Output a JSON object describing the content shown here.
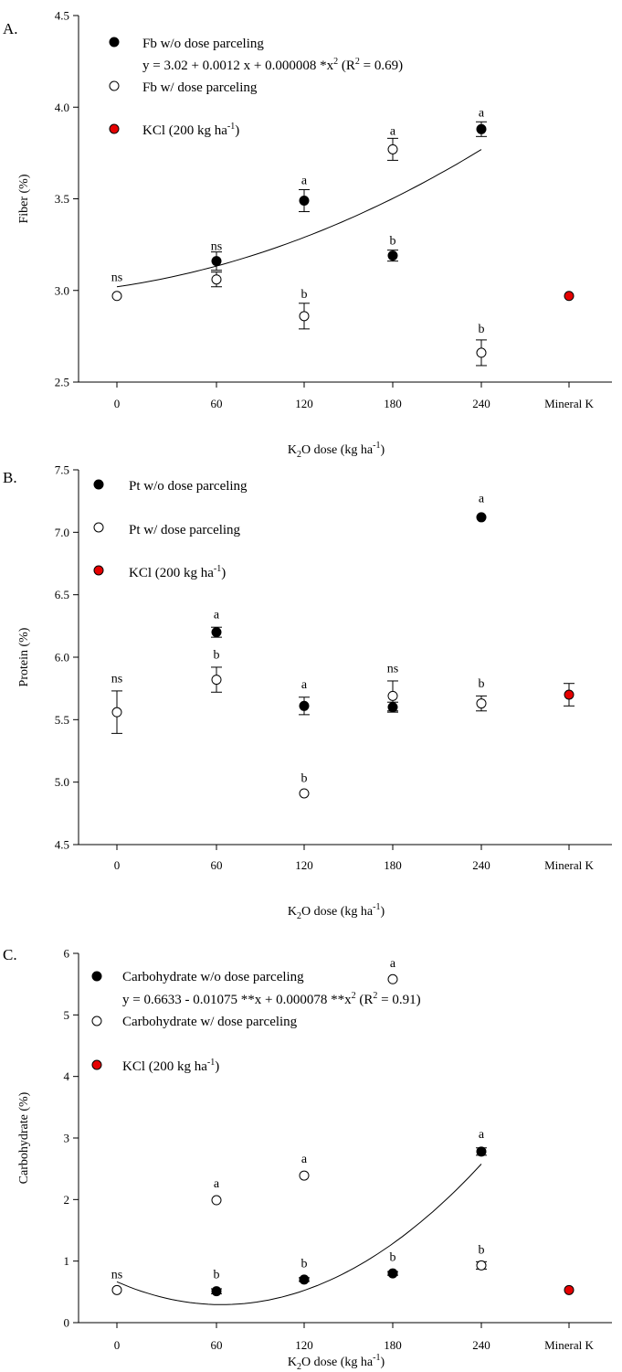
{
  "chart_data": [
    {
      "panel": "A.",
      "type": "scatter",
      "categories": [
        "0",
        "60",
        "120",
        "180",
        "240",
        "Mineral K"
      ],
      "ylabel": "Fiber (%)",
      "xlabel": {
        "pre": "K",
        "sub": "2",
        "mid": "O dose (kg ha",
        "sup": "-1",
        "post": ")"
      },
      "ylim": [
        2.5,
        4.5
      ],
      "yticks": [
        "2.5",
        "3.0",
        "3.5",
        "4.0",
        "4.5"
      ],
      "series": [
        {
          "name": "Fb w/o dose parceling",
          "marker": "filled",
          "color": "#000000",
          "points": [
            {
              "cat": 1,
              "y": 3.16,
              "err": 0.05
            },
            {
              "cat": 2,
              "y": 3.49,
              "err": 0.06
            },
            {
              "cat": 3,
              "y": 3.19,
              "err": 0.03
            },
            {
              "cat": 4,
              "y": 3.88,
              "err": 0.04
            }
          ]
        },
        {
          "name": "Fb w/ dose parceling",
          "marker": "open",
          "color": "#000000",
          "points": [
            {
              "cat": 0,
              "y": 2.97,
              "err": 0.0
            },
            {
              "cat": 1,
              "y": 3.06,
              "err": 0.04
            },
            {
              "cat": 2,
              "y": 2.86,
              "err": 0.07
            },
            {
              "cat": 3,
              "y": 3.77,
              "err": 0.06
            },
            {
              "cat": 4,
              "y": 2.66,
              "err": 0.07
            }
          ]
        },
        {
          "name": "KCl (200 kg ha-1)",
          "marker": "red",
          "color": "#e60000",
          "points": [
            {
              "cat": 5,
              "y": 2.97,
              "err": 0.0
            }
          ]
        }
      ],
      "legend": [
        {
          "marker": "filled",
          "text": "Fb w/o dose parceling"
        },
        {
          "marker": "open",
          "text": "Fb w/ dose parceling"
        },
        {
          "marker": "red",
          "text": "KCl (200 kg ha",
          "sup": "-1",
          "post": ")"
        }
      ],
      "equation": {
        "text": "y = 3.02 + 0.0012 x + 0.000008 *x",
        "sup": "2",
        "post": " (R",
        "sup2": "2",
        "post2": " = 0.69)"
      },
      "fit": {
        "a": 3.02,
        "b": 0.0012,
        "c": 8e-06,
        "x0": 0,
        "x1": 240
      },
      "sig_labels": [
        {
          "cat": 0,
          "y": 3.05,
          "text": "ns"
        },
        {
          "cat": 1,
          "y": 3.22,
          "text": "ns"
        },
        {
          "cat": 2,
          "y": 3.58,
          "text": "a"
        },
        {
          "cat": 2,
          "y": 2.96,
          "text": "b"
        },
        {
          "cat": 3,
          "y": 3.85,
          "text": "a"
        },
        {
          "cat": 3,
          "y": 3.25,
          "text": "b"
        },
        {
          "cat": 4,
          "y": 3.95,
          "text": "a"
        },
        {
          "cat": 4,
          "y": 2.77,
          "text": "b"
        }
      ]
    },
    {
      "panel": "B.",
      "type": "scatter",
      "categories": [
        "0",
        "60",
        "120",
        "180",
        "240",
        "Mineral K"
      ],
      "ylabel": "Protein (%)",
      "xlabel": {
        "pre": "K",
        "sub": "2",
        "mid": "O dose (kg ha",
        "sup": "-1",
        "post": ")"
      },
      "ylim": [
        4.5,
        7.5
      ],
      "yticks": [
        "4.5",
        "5.0",
        "5.5",
        "6.0",
        "6.5",
        "7.0",
        "7.5"
      ],
      "series": [
        {
          "name": "Pt w/o dose parceling",
          "marker": "filled",
          "color": "#000000",
          "points": [
            {
              "cat": 1,
              "y": 6.2,
              "err": 0.04
            },
            {
              "cat": 2,
              "y": 5.61,
              "err": 0.07
            },
            {
              "cat": 3,
              "y": 5.6,
              "err": 0.04
            },
            {
              "cat": 4,
              "y": 7.12,
              "err": 0.0
            }
          ]
        },
        {
          "name": "Pt w/ dose parceling",
          "marker": "open",
          "color": "#000000",
          "points": [
            {
              "cat": 0,
              "y": 5.56,
              "err": 0.17
            },
            {
              "cat": 1,
              "y": 5.82,
              "err": 0.1
            },
            {
              "cat": 2,
              "y": 4.91,
              "err": 0.0
            },
            {
              "cat": 3,
              "y": 5.69,
              "err": 0.12
            },
            {
              "cat": 4,
              "y": 5.63,
              "err": 0.06
            }
          ]
        },
        {
          "name": "KCl (200 kg ha-1)",
          "marker": "red",
          "color": "#e60000",
          "points": [
            {
              "cat": 5,
              "y": 5.7,
              "err": 0.09
            }
          ]
        }
      ],
      "legend": [
        {
          "marker": "filled",
          "text": "Pt w/o dose parceling"
        },
        {
          "marker": "open",
          "text": "Pt w/ dose parceling"
        },
        {
          "marker": "red",
          "text": "KCl (200 kg ha",
          "sup": "-1",
          "post": ")"
        }
      ],
      "sig_labels": [
        {
          "cat": 0,
          "y": 5.8,
          "text": "ns"
        },
        {
          "cat": 1,
          "y": 6.31,
          "text": "a"
        },
        {
          "cat": 1,
          "y": 5.99,
          "text": "b"
        },
        {
          "cat": 2,
          "y": 5.75,
          "text": "a"
        },
        {
          "cat": 2,
          "y": 5.0,
          "text": "b"
        },
        {
          "cat": 3,
          "y": 5.88,
          "text": "ns"
        },
        {
          "cat": 4,
          "y": 7.24,
          "text": "a"
        },
        {
          "cat": 4,
          "y": 5.76,
          "text": "b"
        }
      ]
    },
    {
      "panel": "C.",
      "type": "scatter",
      "categories": [
        "0",
        "60",
        "120",
        "180",
        "240",
        "Mineral K"
      ],
      "ylabel": "Carbohydrate (%)",
      "xlabel": {
        "pre": "K",
        "sub": "2",
        "mid": "O dose (kg ha",
        "sup": "-1",
        "post": ")"
      },
      "ylim": [
        0,
        6
      ],
      "yticks": [
        "0",
        "1",
        "2",
        "3",
        "4",
        "5",
        "6"
      ],
      "series": [
        {
          "name": "Carbohydrate w/o dose parceling",
          "marker": "filled",
          "color": "#000000",
          "points": [
            {
              "cat": 1,
              "y": 0.51,
              "err": 0.04
            },
            {
              "cat": 2,
              "y": 0.7,
              "err": 0.03
            },
            {
              "cat": 3,
              "y": 0.8,
              "err": 0.03
            },
            {
              "cat": 4,
              "y": 2.78,
              "err": 0.06
            }
          ]
        },
        {
          "name": "Carbohydrate w/ dose parceling",
          "marker": "open",
          "color": "#000000",
          "points": [
            {
              "cat": 0,
              "y": 0.53,
              "err": 0.0
            },
            {
              "cat": 1,
              "y": 1.99,
              "err": 0.0
            },
            {
              "cat": 2,
              "y": 2.39,
              "err": 0.0
            },
            {
              "cat": 3,
              "y": 5.58,
              "err": 0.0
            },
            {
              "cat": 4,
              "y": 0.93,
              "err": 0.06
            }
          ]
        },
        {
          "name": "KCl (200 kg ha-1)",
          "marker": "red",
          "color": "#e60000",
          "points": [
            {
              "cat": 5,
              "y": 0.53,
              "err": 0.0
            }
          ]
        }
      ],
      "legend": [
        {
          "marker": "filled",
          "text": "Carbohydrate w/o dose parceling"
        },
        {
          "marker": "open",
          "text": "Carbohydrate  w/ dose parceling"
        },
        {
          "marker": "red",
          "text": "KCl (200 kg ha",
          "sup": "-1",
          "post": ")"
        }
      ],
      "equation": {
        "text": "y = 0.6633 - 0.01075 **x + 0.000078 **x",
        "sup": "2",
        "post": " (R",
        "sup2": "2",
        "post2": " = 0.91)"
      },
      "fit": {
        "a": 0.6633,
        "b": -0.01075,
        "c": 7.8e-05,
        "x0": 0,
        "x1": 240
      },
      "sig_labels": [
        {
          "cat": 0,
          "y": 0.72,
          "text": "ns"
        },
        {
          "cat": 1,
          "y": 2.2,
          "text": "a"
        },
        {
          "cat": 1,
          "y": 0.72,
          "text": "b"
        },
        {
          "cat": 2,
          "y": 2.6,
          "text": "a"
        },
        {
          "cat": 2,
          "y": 0.9,
          "text": "b"
        },
        {
          "cat": 3,
          "y": 5.78,
          "text": "a"
        },
        {
          "cat": 3,
          "y": 1.0,
          "text": "b"
        },
        {
          "cat": 4,
          "y": 3.0,
          "text": "a"
        },
        {
          "cat": 4,
          "y": 1.12,
          "text": "b"
        }
      ]
    }
  ]
}
